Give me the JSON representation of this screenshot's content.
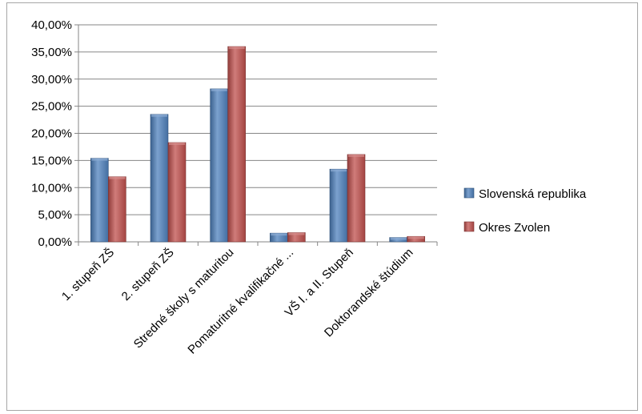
{
  "chart_data": {
    "type": "bar",
    "categories": [
      "1. stupeň ZŠ",
      "2. stupeň ZŠ",
      "Stredné školy s maturitou",
      "Pomaturitné kvalifikačné ...",
      "VŠ I. a II. Stupeň",
      "Doktorandské štúdium"
    ],
    "series": [
      {
        "name": "Slovenská republika",
        "color": "#4f81bd",
        "values": [
          15.4,
          23.5,
          28.2,
          1.6,
          13.4,
          0.8
        ]
      },
      {
        "name": "Okres Zvolen",
        "color": "#c0504d",
        "values": [
          12.0,
          18.3,
          36.0,
          1.7,
          16.1,
          1.0
        ]
      }
    ],
    "yticks": [
      "0,00%",
      "5,00%",
      "10,00%",
      "15,00%",
      "20,00%",
      "25,00%",
      "30,00%",
      "35,00%",
      "40,00%"
    ],
    "ylim": [
      0,
      40
    ],
    "title": "",
    "xlabel": "",
    "ylabel": "",
    "grid": true,
    "legend_position": "right"
  }
}
